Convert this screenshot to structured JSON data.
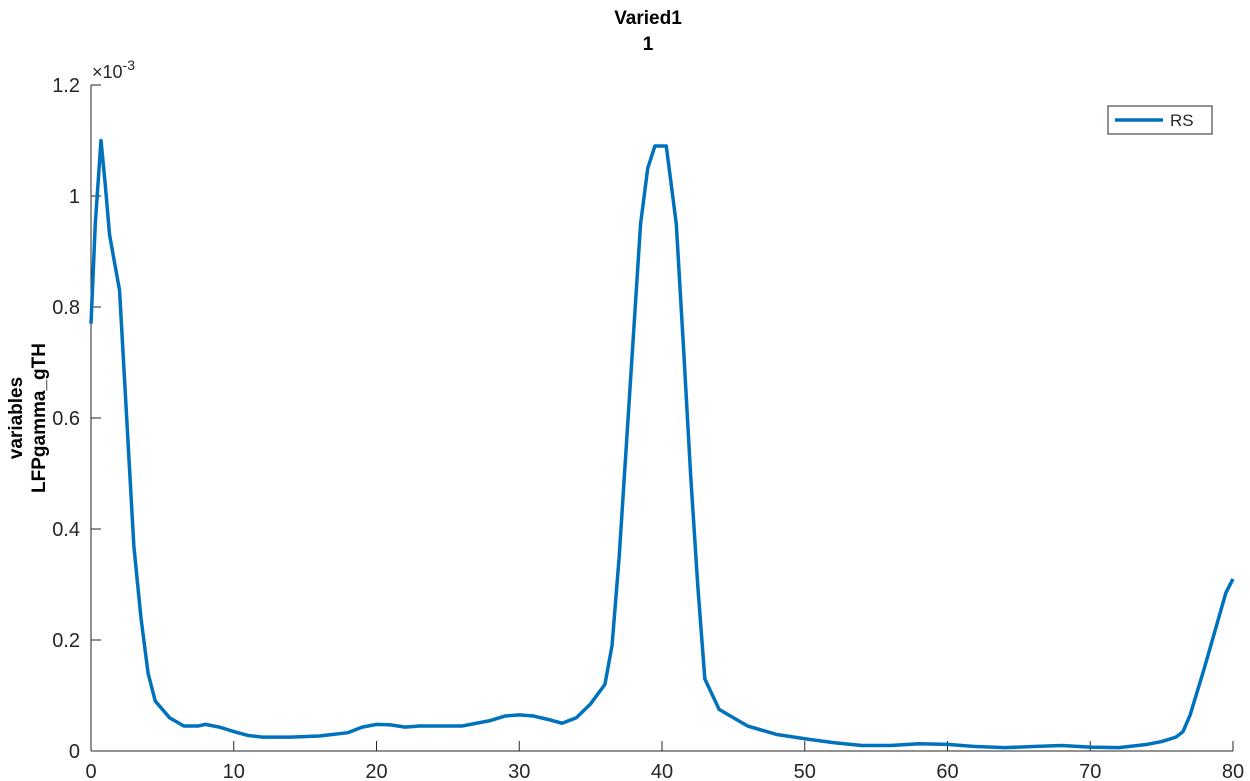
{
  "chart_data": {
    "type": "line",
    "title": [
      "Varied1",
      "1"
    ],
    "ylabel": [
      "variables",
      "LFPgamma_gTH"
    ],
    "y_multiplier_base": "×10",
    "y_multiplier_exponent": "-3",
    "x": [
      0,
      0.3,
      0.7,
      1.0,
      1.3,
      2.0,
      2.5,
      3.0,
      3.5,
      4.0,
      4.5,
      5.5,
      6.5,
      7.5,
      8,
      9,
      10,
      11,
      12,
      14,
      16,
      18,
      19,
      20,
      21,
      22,
      23,
      26,
      28,
      29,
      30,
      31,
      32,
      33,
      34,
      35,
      36,
      36.5,
      37,
      37.5,
      38,
      38.5,
      39,
      39.5,
      40.3,
      41,
      41.5,
      42,
      42.5,
      43,
      44,
      45,
      46,
      48,
      50,
      52,
      54,
      56,
      58,
      60,
      62,
      64,
      66,
      68,
      70,
      72,
      74,
      75,
      76,
      76.5,
      77,
      78,
      79,
      79.5,
      80
    ],
    "series": [
      {
        "name": "RS",
        "color": "#0072bd",
        "values": [
          0.77,
          0.95,
          1.1,
          1.02,
          0.93,
          0.83,
          0.6,
          0.37,
          0.24,
          0.14,
          0.09,
          0.06,
          0.045,
          0.045,
          0.048,
          0.043,
          0.035,
          0.028,
          0.025,
          0.025,
          0.027,
          0.033,
          0.043,
          0.048,
          0.047,
          0.043,
          0.045,
          0.045,
          0.055,
          0.063,
          0.065,
          0.063,
          0.057,
          0.05,
          0.06,
          0.085,
          0.12,
          0.19,
          0.35,
          0.55,
          0.75,
          0.95,
          1.05,
          1.09,
          1.09,
          0.95,
          0.73,
          0.5,
          0.3,
          0.13,
          0.075,
          0.06,
          0.045,
          0.03,
          0.022,
          0.015,
          0.01,
          0.01,
          0.013,
          0.012,
          0.008,
          0.006,
          0.008,
          0.01,
          0.007,
          0.006,
          0.012,
          0.017,
          0.025,
          0.035,
          0.065,
          0.15,
          0.24,
          0.285,
          0.31
        ]
      }
    ],
    "xlim": [
      0,
      80
    ],
    "xticks": [
      0,
      10,
      20,
      30,
      40,
      50,
      60,
      70,
      80
    ],
    "ylim": [
      0,
      1.2
    ],
    "yticks": [
      0,
      0.2,
      0.4,
      0.6,
      0.8,
      1,
      1.2
    ],
    "legend": "northeast",
    "grid": false
  }
}
